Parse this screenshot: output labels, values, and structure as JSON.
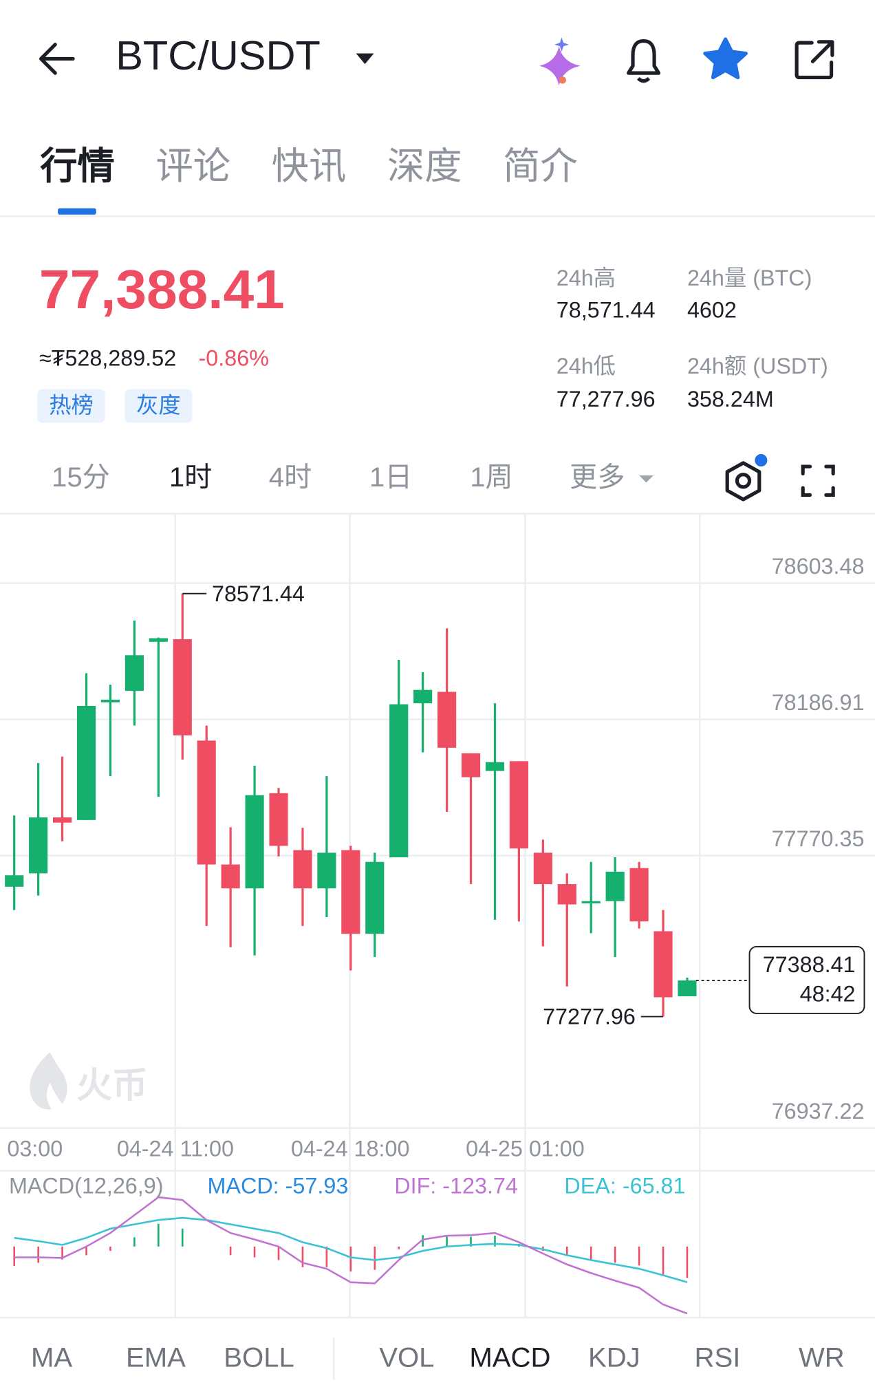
{
  "header": {
    "title": "BTC/USDT"
  },
  "tabs": [
    "行情",
    "评论",
    "快讯",
    "深度",
    "简介"
  ],
  "ticker": {
    "price": "77,388.41",
    "fiat": "≈₮528,289.52",
    "change": "-0.86%",
    "tags": [
      "热榜",
      "灰度"
    ],
    "stats": [
      {
        "label": "24h高",
        "value": "78,571.44"
      },
      {
        "label": "24h量 (BTC)",
        "value": "4602"
      },
      {
        "label": "24h低",
        "value": "77,277.96"
      },
      {
        "label": "24h额 (USDT)",
        "value": "358.24M"
      }
    ]
  },
  "intervals": [
    "15分",
    "1时",
    "4时",
    "1日",
    "1周",
    "更多"
  ],
  "chart_data": {
    "type": "candlestick",
    "up_color": "#16b06e",
    "down_color": "#ee4d62",
    "x_labels": [
      "03:00",
      "04-24 11:00",
      "04-24 18:00",
      "04-25 01:00"
    ],
    "ylim": [
      76937.22,
      78813
    ],
    "yticks": [
      78603.48,
      78186.91,
      77770.35,
      76937.22
    ],
    "grid": true,
    "candles": {
      "open": [
        77675,
        77716,
        77887,
        77879,
        78239,
        78274,
        78424,
        78432,
        78122,
        77743,
        77670,
        77961,
        77787,
        77670,
        77787,
        77531,
        77765,
        78236,
        78271,
        78083,
        78029,
        78059,
        77779,
        77683,
        77626,
        77631,
        77732,
        77539,
        77340
      ],
      "high": [
        77893,
        78053,
        78073,
        78328,
        78293,
        78489,
        78437,
        78571.44,
        78168,
        77857,
        78045,
        77977,
        77855,
        78013,
        77800,
        77779,
        78369,
        78331,
        78465,
        78083,
        78236,
        78059,
        77819,
        77716,
        77751,
        77765,
        77751,
        77604,
        77397
      ],
      "low": [
        77604,
        77648,
        77814,
        77879,
        78013,
        78168,
        77950,
        78064,
        77555,
        77490,
        77465,
        77768,
        77555,
        77582,
        77419,
        77460,
        77765,
        78086,
        77904,
        77683,
        77574,
        77569,
        77493,
        77370,
        77533,
        77460,
        77547,
        77277.96,
        77340
      ],
      "close": [
        77710,
        77887,
        77871,
        78228,
        78247,
        78383,
        78435,
        78138,
        77743,
        77670,
        77955,
        77800,
        77670,
        77779,
        77531,
        77751,
        78233,
        78277,
        78100,
        78010,
        78056,
        77792,
        77683,
        77621,
        77631,
        77721,
        77569,
        77337,
        77388.41
      ]
    },
    "countdown": "48:42",
    "watermark": "火币",
    "macd": {
      "params": "MACD(12,26,9)",
      "macd_label": "MACD: -57.93",
      "dif_label": "DIF: -123.74",
      "dea_label": "DEA: -65.81",
      "ylim": [
        -128,
        135
      ],
      "macd_color": "#2a8be0",
      "dif_color": "#c073d2",
      "dea_color": "#3cc3d3",
      "dif": [
        -20,
        -20,
        -21,
        0,
        25,
        58,
        91,
        86,
        49,
        25,
        13,
        0,
        -30,
        -41,
        -66,
        -68,
        -25,
        13,
        20,
        21,
        25,
        8,
        -13,
        -33,
        -49,
        -63,
        -76,
        -107,
        -123.74
      ],
      "dea": [
        16,
        10,
        3,
        16,
        33,
        41,
        49,
        53,
        49,
        41,
        33,
        25,
        8,
        -3,
        -20,
        -25,
        -20,
        -8,
        0,
        3,
        5,
        3,
        -5,
        -16,
        -25,
        -33,
        -41,
        -53,
        -65.81
      ],
      "hist": [
        -36,
        -30,
        -24,
        -16,
        -8,
        17,
        42,
        33,
        0,
        -16,
        -20,
        -25,
        -38,
        -38,
        -46,
        -43,
        -5,
        21,
        20,
        18,
        20,
        5,
        -8,
        -17,
        -24,
        -30,
        -35,
        -54,
        -57.93
      ]
    }
  },
  "indicators": [
    "MA",
    "EMA",
    "BOLL",
    "VOL",
    "MACD",
    "KDJ",
    "RSI",
    "WR"
  ]
}
